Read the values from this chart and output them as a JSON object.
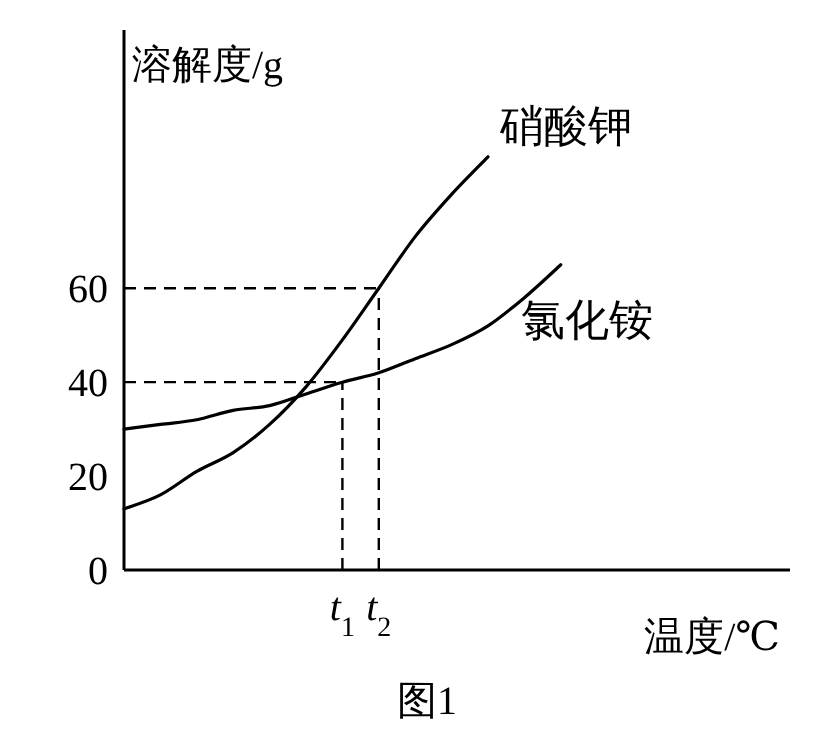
{
  "chart_data": {
    "type": "line",
    "xlabel": "温度/℃",
    "ylabel": "溶解度/g",
    "annotations": [
      "图1"
    ],
    "categories": [
      null,
      null,
      null,
      null,
      null,
      null,
      "t$_{1}$",
      "t$_{2}$",
      null,
      null,
      null,
      null,
      null,
      null,
      null,
      null,
      null,
      null,
      null
    ],
    "ylim": [
      0,
      115
    ],
    "yticks": [
      0,
      20,
      40,
      60
    ],
    "series": [
      {
        "name": "硝酸钾",
        "color": "#000000",
        "values": [
          13,
          16,
          21,
          25,
          31,
          39,
          49,
          60,
          71,
          80,
          88,
          null,
          null,
          null,
          null,
          null,
          null,
          null,
          null
        ]
      },
      {
        "name": "氯化铵",
        "color": "#000000",
        "values": [
          30,
          31,
          32,
          34,
          35,
          37.5,
          40,
          42,
          45,
          48,
          52,
          58,
          65,
          null,
          null,
          null,
          null,
          null,
          null
        ]
      }
    ],
    "ref_lines": [
      {
        "axis": "y",
        "value": 60,
        "line_style": "dashed"
      },
      {
        "axis": "y",
        "value": 40,
        "line_style": "dashed"
      },
      {
        "axis": "x",
        "value": "t$_{1}$",
        "line_style": "dashed"
      },
      {
        "axis": "x",
        "value": "t$_{2}$",
        "line_style": "dashed"
      }
    ],
    "grid": false,
    "legend": false,
    "marker": "none",
    "line_style": "solid"
  }
}
